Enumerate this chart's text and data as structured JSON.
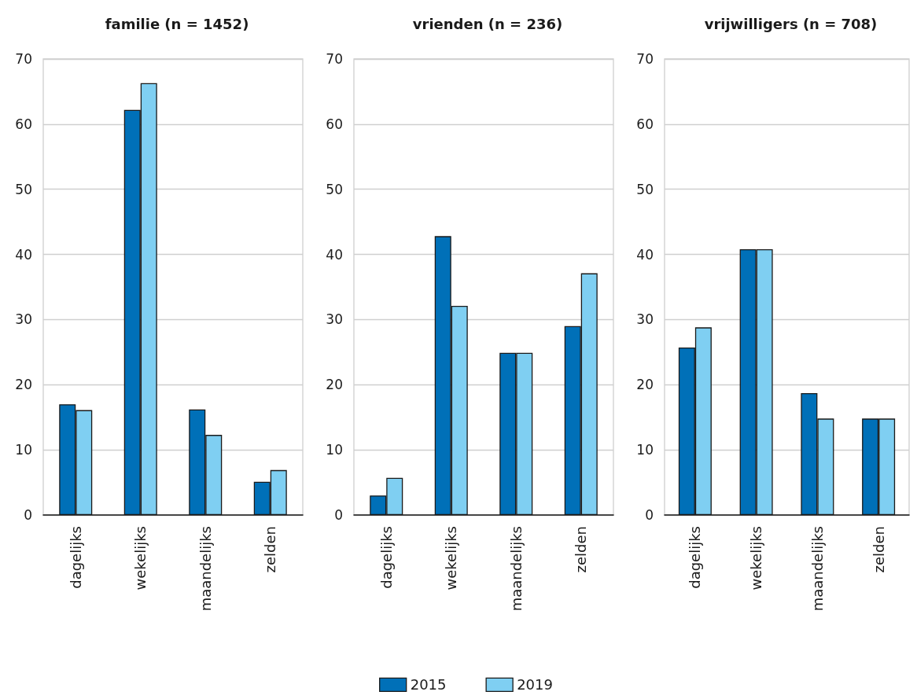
{
  "chart_data": [
    {
      "type": "bar",
      "title": "familie (n = 1452)",
      "categories": [
        "dagelijks",
        "wekelijks",
        "maandelijks",
        "zelden"
      ],
      "series": [
        {
          "color": "#0070b8",
          "values": [
            17.0,
            62.2,
            16.2,
            5.1
          ]
        },
        {
          "color": "#7fcff2",
          "values": [
            16.1,
            66.3,
            12.3,
            6.9
          ]
        }
      ],
      "ylim": [
        0,
        70
      ],
      "yticks": [
        0,
        10,
        20,
        30,
        40,
        50,
        60,
        70
      ],
      "grid": "y",
      "legend": false
    },
    {
      "type": "bar",
      "title": "vrienden (n = 236)",
      "categories": [
        "dagelijks",
        "wekelijks",
        "maandelijks",
        "zelden"
      ],
      "series": [
        {
          "name": "2015",
          "color": "#0070b8",
          "values": [
            3.0,
            42.8,
            24.9,
            29.0
          ]
        },
        {
          "name": "2019",
          "color": "#7fcff2",
          "values": [
            5.7,
            32.1,
            24.9,
            37.1
          ]
        }
      ],
      "ylim": [
        0,
        70
      ],
      "yticks": [
        0,
        10,
        20,
        30,
        40,
        50,
        60,
        70
      ],
      "grid": "y",
      "legend": "bottom"
    },
    {
      "type": "bar",
      "title": "vrijwilligers (n = 708)",
      "categories": [
        "dagelijks",
        "wekelijks",
        "maandelijks",
        "zelden"
      ],
      "series": [
        {
          "color": "#0070b8",
          "values": [
            25.7,
            40.8,
            18.7,
            14.8
          ]
        },
        {
          "color": "#7fcff2",
          "values": [
            28.8,
            40.8,
            14.8,
            14.8
          ]
        }
      ],
      "ylim": [
        0,
        70
      ],
      "yticks": [
        0,
        10,
        20,
        30,
        40,
        50,
        60,
        70
      ],
      "grid": "y",
      "legend": false
    }
  ]
}
